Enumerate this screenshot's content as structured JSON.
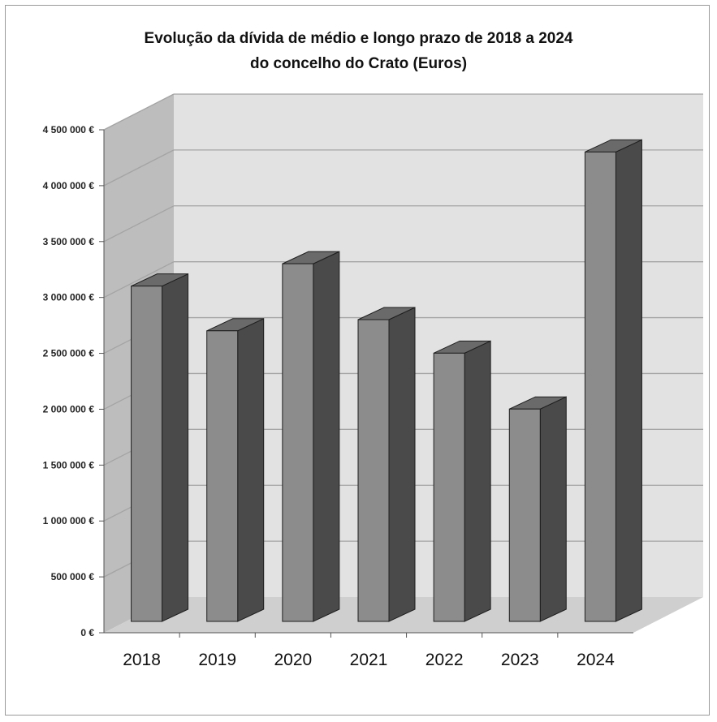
{
  "chart_data": {
    "type": "bar",
    "title": "Evolução da dívida de médio e longo prazo de 2018 a 2024",
    "subtitle": "do concelho do Crato (Euros)",
    "xlabel": "",
    "ylabel": "",
    "categories": [
      "2018",
      "2019",
      "2020",
      "2021",
      "2022",
      "2023",
      "2024"
    ],
    "values": [
      3000000,
      2600000,
      3200000,
      2700000,
      2400000,
      1900000,
      4200000
    ],
    "ylim": [
      0,
      4500000
    ],
    "yticks": [
      0,
      500000,
      1000000,
      1500000,
      2000000,
      2500000,
      3000000,
      3500000,
      4000000,
      4500000
    ],
    "ytick_labels": [
      "0 €",
      "500 000 €",
      "1 000 000 €",
      "1 500 000 €",
      "2 000 000 €",
      "2 500 000 €",
      "3 000 000 €",
      "3 500 000 €",
      "4 000 000 €",
      "4 500 000 €"
    ],
    "grid": true,
    "legend": "none",
    "style": "3d-column",
    "colors": {
      "bar_front": "#8c8c8c",
      "bar_side": "#4a4a4a",
      "bar_top": "#6a6a6a",
      "back_wall": "#e2e2e2",
      "side_wall": "#bdbdbd",
      "floor": "#cfcfcf",
      "grid": "#a4a4a4"
    }
  }
}
